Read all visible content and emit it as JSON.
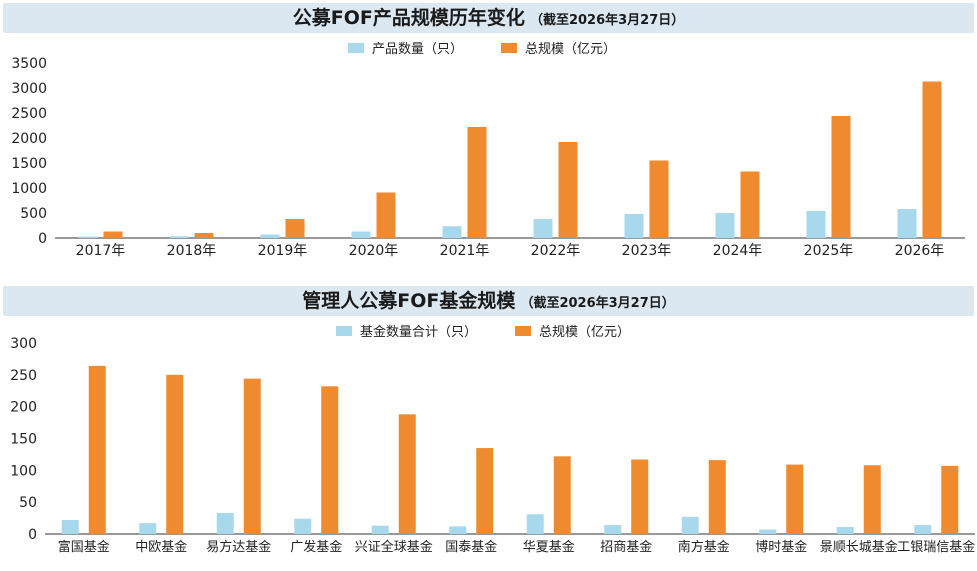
{
  "colors": {
    "count": "#a8d8ec",
    "scale": "#f08a2e",
    "title_bg": "#dbe8f2"
  },
  "chart_data": [
    {
      "type": "bar",
      "title": "公募FOF产品规模历年变化",
      "subtitle": "（截至2026年3月27日）",
      "categories": [
        "2017年",
        "2018年",
        "2019年",
        "2020年",
        "2021年",
        "2022年",
        "2023年",
        "2024年",
        "2025年",
        "2026年"
      ],
      "series": [
        {
          "name": "产品数量（只）",
          "values": [
            30,
            35,
            70,
            130,
            235,
            380,
            480,
            500,
            540,
            580
          ]
        },
        {
          "name": "总规模（亿元）",
          "values": [
            130,
            100,
            380,
            910,
            2220,
            1920,
            1550,
            1330,
            2440,
            3130
          ]
        }
      ],
      "yticks": [
        "0",
        "500",
        "1000",
        "1500",
        "2000",
        "2500",
        "3000",
        "3500"
      ],
      "ylim": [
        0,
        3500
      ],
      "grid": false,
      "legend_position": "top-center"
    },
    {
      "type": "bar",
      "title": "管理人公募FOF基金规模",
      "subtitle": "（截至2026年3月27日）",
      "categories": [
        "富国基金",
        "中欧基金",
        "易方达基金",
        "广发基金",
        "兴证全球基金",
        "国泰基金",
        "华夏基金",
        "招商基金",
        "南方基金",
        "博时基金",
        "景顺长城基金",
        "工银瑞信基金"
      ],
      "series": [
        {
          "name": "基金数量合计（只）",
          "values": [
            22,
            17,
            33,
            24,
            13,
            12,
            31,
            14,
            27,
            7,
            11,
            14
          ]
        },
        {
          "name": "总规模（亿元）",
          "values": [
            264,
            250,
            244,
            232,
            188,
            135,
            122,
            117,
            116,
            109,
            108,
            107
          ]
        }
      ],
      "yticks": [
        "0",
        "50",
        "100",
        "150",
        "200",
        "250",
        "300"
      ],
      "ylim": [
        0,
        300
      ],
      "grid": false,
      "legend_position": "top-center"
    }
  ]
}
